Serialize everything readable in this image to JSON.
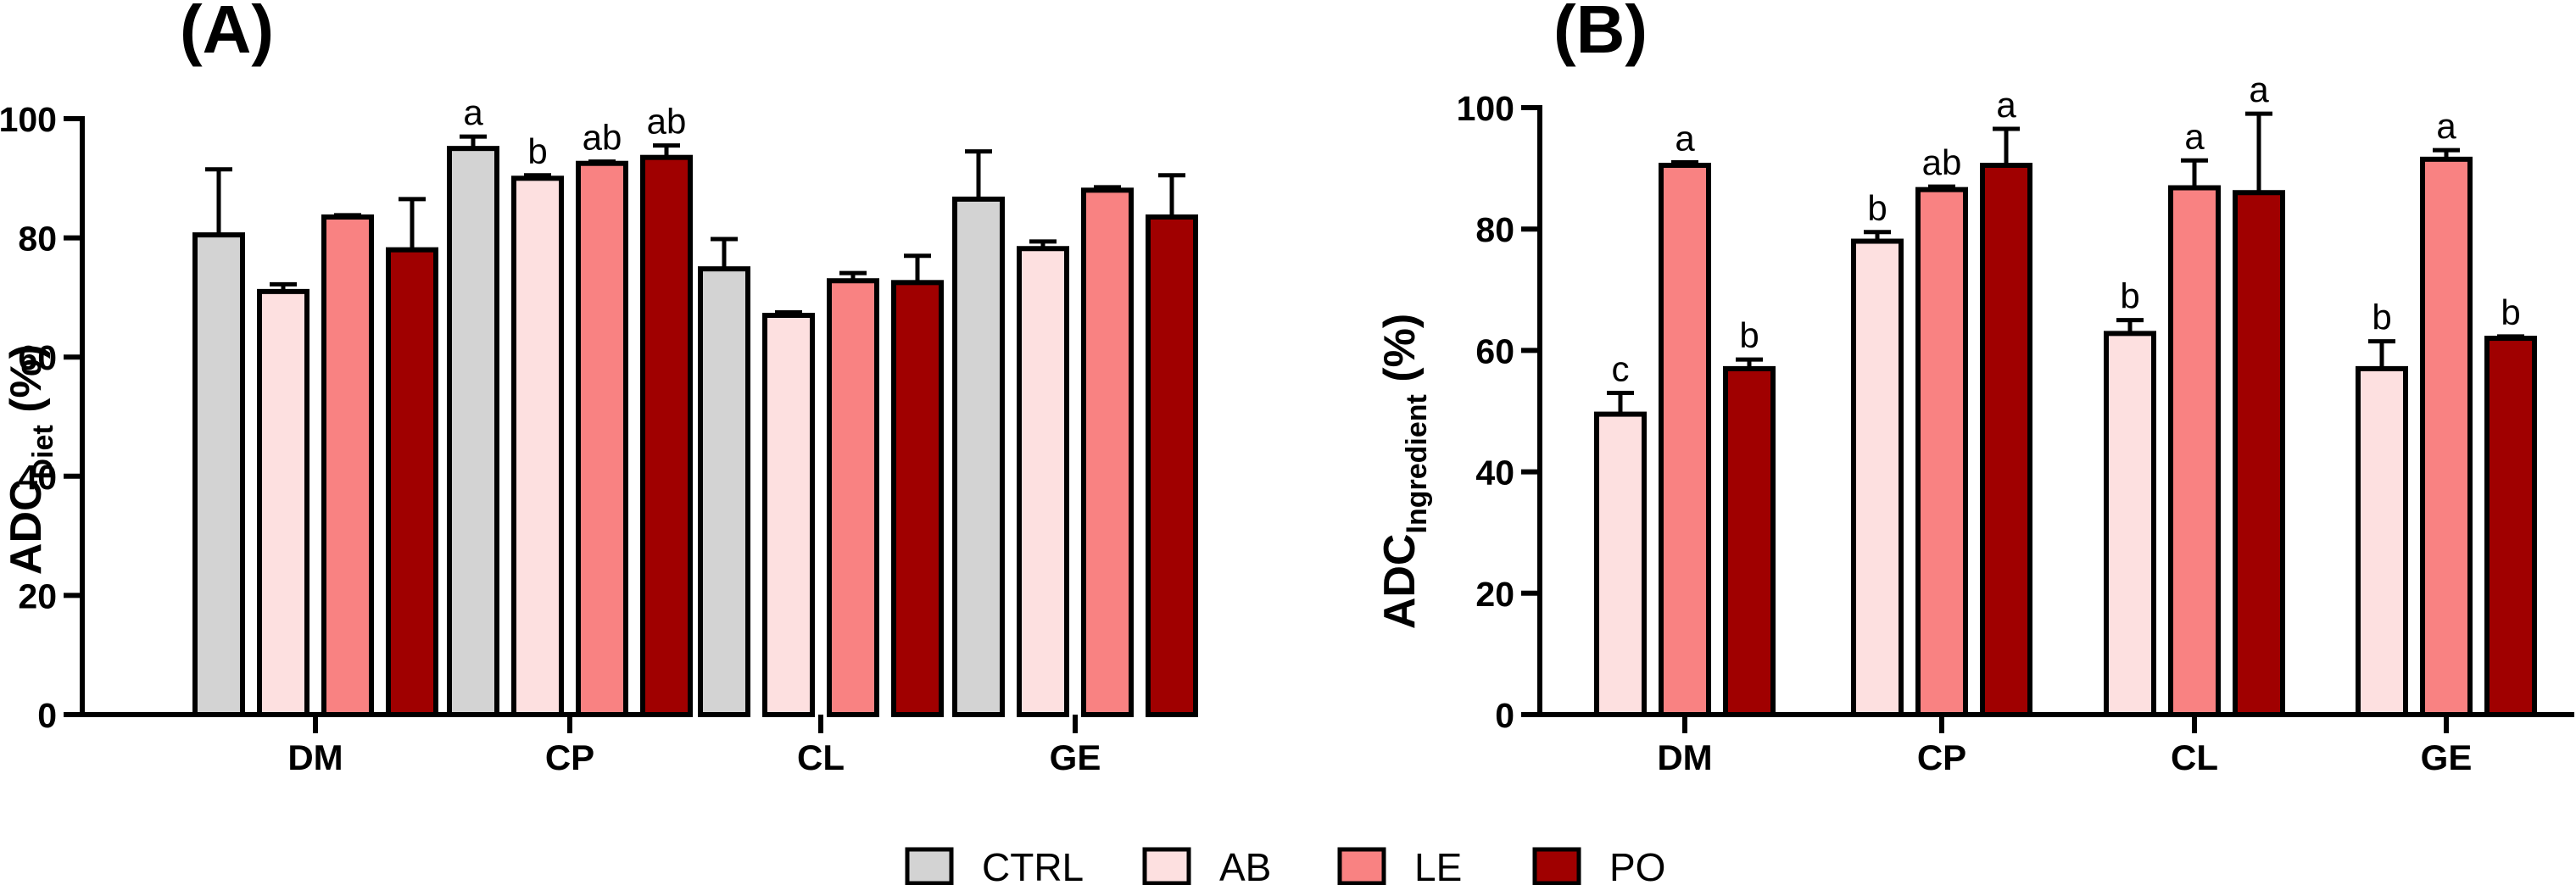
{
  "legend": [
    {
      "name": "CTRL",
      "color": "#d3d3d3"
    },
    {
      "name": "AB",
      "color": "#fde0e0"
    },
    {
      "name": "LE",
      "color": "#f98282"
    },
    {
      "name": "PO",
      "color": "#a00000"
    }
  ],
  "chart_data": [
    {
      "type": "bar",
      "panel_label": "(A)",
      "ylabel_main": "ADC",
      "ylabel_sub": "Diet",
      "ylabel_tail": " (%)",
      "ylim": [
        0,
        100
      ],
      "yticks": [
        0,
        20,
        40,
        60,
        80,
        100
      ],
      "categories": [
        "DM",
        "CP",
        "CL",
        "GE"
      ],
      "series": [
        {
          "name": "CTRL",
          "values": [
            80.5,
            95,
            74.8,
            86.5
          ],
          "errors": [
            11,
            2,
            5,
            8
          ],
          "labels": [
            "",
            "a",
            "",
            ""
          ]
        },
        {
          "name": "AB",
          "values": [
            71,
            90,
            67,
            78.2
          ],
          "errors": [
            1.2,
            0.5,
            0.5,
            1.2
          ],
          "labels": [
            "",
            "b",
            "",
            ""
          ]
        },
        {
          "name": "LE",
          "values": [
            83.5,
            92.5,
            72.8,
            88
          ],
          "errors": [
            0.3,
            0.3,
            1.3,
            0.5
          ],
          "labels": [
            "",
            "ab",
            "",
            ""
          ]
        },
        {
          "name": "PO",
          "values": [
            78,
            93.5,
            72.5,
            83.5
          ],
          "errors": [
            8.5,
            2,
            4.5,
            7
          ],
          "labels": [
            "",
            "ab",
            "",
            ""
          ]
        }
      ]
    },
    {
      "type": "bar",
      "panel_label": "(B)",
      "ylabel_main": "ADC",
      "ylabel_sub": "Ingredient",
      "ylabel_tail": " (%)",
      "ylim": [
        0,
        100
      ],
      "yticks": [
        0,
        20,
        40,
        60,
        80,
        100
      ],
      "categories": [
        "DM",
        "CP",
        "CL",
        "GE"
      ],
      "series": [
        {
          "name": "AB",
          "values": [
            49.5,
            78,
            62.8,
            57
          ],
          "errors": [
            3.5,
            1.5,
            2.2,
            4.5
          ],
          "labels": [
            "c",
            "b",
            "b",
            "b"
          ]
        },
        {
          "name": "LE",
          "values": [
            90.5,
            86.5,
            86.8,
            91.5
          ],
          "errors": [
            0.5,
            0.5,
            4.5,
            1.5
          ],
          "labels": [
            "a",
            "ab",
            "a",
            "a"
          ]
        },
        {
          "name": "PO",
          "values": [
            57,
            90.5,
            86,
            62
          ],
          "errors": [
            1.5,
            6,
            13,
            0.3
          ],
          "labels": [
            "b",
            "a",
            "a",
            "b"
          ]
        }
      ]
    }
  ]
}
